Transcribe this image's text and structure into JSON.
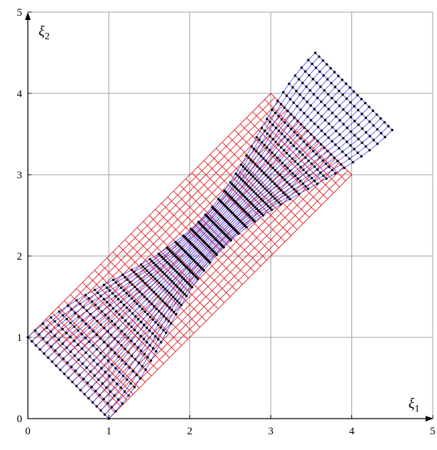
{
  "chart_data": {
    "type": "scatter",
    "title": "",
    "xlabel": "ξ",
    "xlabel_sub": "1",
    "ylabel": "ξ",
    "ylabel_sub": "2",
    "xlim": [
      0,
      5
    ],
    "ylim": [
      0,
      5
    ],
    "xticks": [
      "0",
      "1",
      "2",
      "3",
      "4",
      "5"
    ],
    "yticks": [
      "0",
      "1",
      "2",
      "3",
      "4",
      "5"
    ],
    "grid": true,
    "reference_grid": {
      "description_color": "#e0191e",
      "corners": [
        [
          1,
          0
        ],
        [
          4,
          3
        ],
        [
          3,
          4
        ],
        [
          0,
          1
        ]
      ],
      "divisions_u": 40,
      "divisions_v": 20
    },
    "deformed_lattice": {
      "color_points": "#000000",
      "color_links": "#3c3cff",
      "corners": [
        [
          1,
          0
        ],
        [
          4.5,
          3.55
        ],
        [
          3.55,
          4.5
        ],
        [
          0,
          1
        ]
      ],
      "divisions_u": 40,
      "divisions_v": 20,
      "neck_min_halfwidth_fraction": 0.32
    },
    "colors": {
      "grid": "#a0a0a0",
      "axes": "#000000"
    }
  }
}
